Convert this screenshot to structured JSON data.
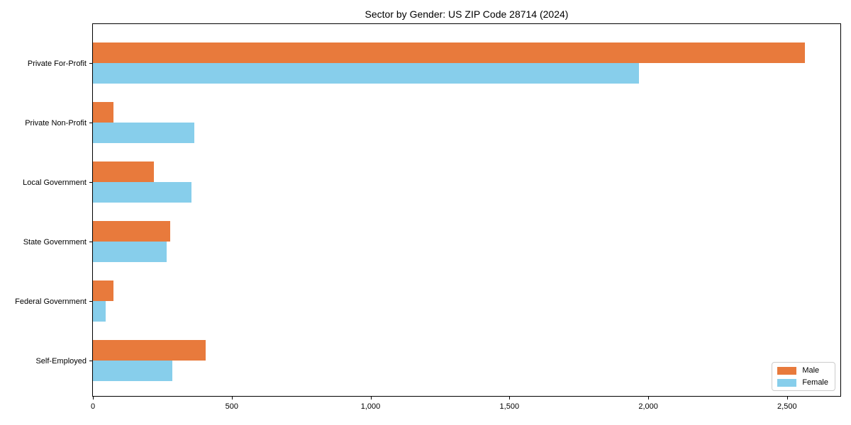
{
  "chart_data": {
    "type": "bar",
    "orientation": "horizontal",
    "title": "Sector by Gender: US ZIP Code 28714 (2024)",
    "categories": [
      "Private For-Profit",
      "Private Non-Profit",
      "Local Government",
      "State Government",
      "Federal Government",
      "Self-Employed"
    ],
    "series": [
      {
        "name": "Male",
        "color": "#e87a3c",
        "values": [
          2565,
          75,
          220,
          278,
          73,
          407
        ]
      },
      {
        "name": "Female",
        "color": "#87ceeb",
        "values": [
          1966,
          365,
          355,
          266,
          45,
          285
        ]
      }
    ],
    "xlabel": "",
    "ylabel": "",
    "xlim": [
      0,
      2692
    ],
    "xticks": {
      "values": [
        0,
        500,
        1000,
        1500,
        2000,
        2500
      ],
      "labels": [
        "0",
        "500",
        "1,000",
        "1,500",
        "2,000",
        "2,500"
      ]
    },
    "grid": false,
    "legend": {
      "position": "lower right",
      "entries": [
        "Male",
        "Female"
      ]
    }
  }
}
